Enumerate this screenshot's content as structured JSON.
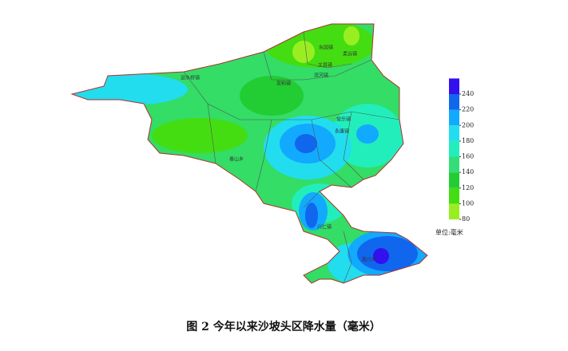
{
  "caption": "图 2  今年以来沙坡头区降水量（毫米）",
  "places": [
    "东园镇",
    "柔远镇",
    "滨河镇",
    "文昌镇",
    "迎水桥镇",
    "宣和镇",
    "常乐镇",
    "永康镇",
    "香山乡",
    "兴仁镇",
    "蒿川乡"
  ],
  "legend": {
    "ticks": [
      80,
      100,
      120,
      140,
      160,
      180,
      200,
      220,
      240
    ],
    "colors": [
      "#99ee22",
      "#44dd11",
      "#22cc33",
      "#33dd77",
      "#22eebb",
      "#22ddee",
      "#11aaff",
      "#1166ee",
      "#3311ee"
    ],
    "unit": "单位:毫米"
  }
}
